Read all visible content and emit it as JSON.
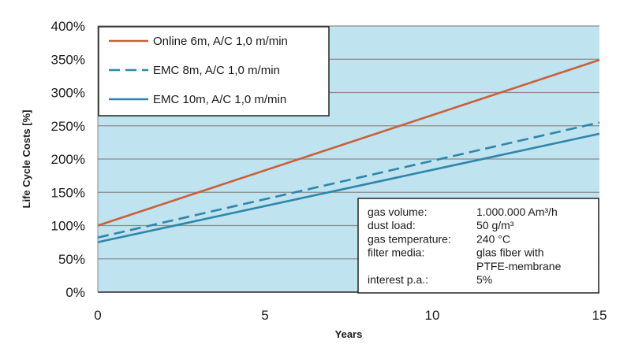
{
  "chart_data": {
    "type": "line",
    "xlabel": "Years",
    "ylabel": "Life Cycle Costs [%]",
    "xlim": [
      0,
      15
    ],
    "ylim": [
      0,
      400
    ],
    "x_ticks": [
      0,
      5,
      10,
      15
    ],
    "y_ticks": [
      0,
      50,
      100,
      150,
      200,
      250,
      300,
      350,
      400
    ],
    "y_tick_labels": [
      "0%",
      "50%",
      "100%",
      "150%",
      "200%",
      "250%",
      "300%",
      "350%",
      "400%"
    ],
    "grid": "horizontal",
    "plot_background": "#bfe3ef",
    "legend_position": "top-left",
    "series": [
      {
        "name": "Online 6m, A/C 1,0 m/min",
        "color": "#c8603c",
        "dash": "solid",
        "x": [
          0,
          15
        ],
        "y": [
          100,
          349
        ]
      },
      {
        "name": "EMC 8m, A/C 1,0 m/min",
        "color": "#2e86ab",
        "dash": "dashed",
        "x": [
          0,
          15
        ],
        "y": [
          82,
          255
        ]
      },
      {
        "name": "EMC 10m, A/C 1,0 m/min",
        "color": "#2e86ab",
        "dash": "solid",
        "x": [
          0,
          15
        ],
        "y": [
          75,
          238
        ]
      }
    ],
    "info_box": [
      {
        "label": "gas volume:",
        "value": "1.000.000 Am³/h"
      },
      {
        "label": "dust load:",
        "value": "50 g/m³"
      },
      {
        "label": "gas temperature:",
        "value": "240 °C"
      },
      {
        "label": "filter media:",
        "value": "glas fiber with"
      },
      {
        "label": "",
        "value": "PTFE-membrane"
      },
      {
        "label": "interest p.a.:",
        "value": "5%"
      }
    ]
  }
}
